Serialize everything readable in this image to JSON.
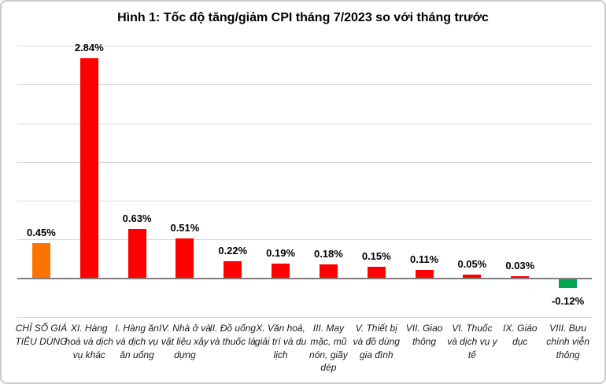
{
  "window": {
    "background": "#ffffff",
    "border_color": "#cacaca"
  },
  "chart_data": {
    "type": "bar",
    "title": "Hình 1: Tốc độ tăng/giảm CPI tháng 7/2023 so với tháng trước",
    "xlabel": "",
    "ylabel": "",
    "unit": "%",
    "categories": [
      "CHỈ SỐ GIÁ TIÊU DÙNG",
      "XI. Hàng hoá và dịch vụ khác",
      "I. Hàng ăn và dịch vụ ăn uống",
      "IV. Nhà ở và vật liệu xây dựng",
      "II. Đồ uống và thuốc lá",
      "X. Văn hoá, giải trí và du lịch",
      "III. May mặc, mũ nón, giầy dép",
      "V. Thiết bị và đồ dùng gia đình",
      "VII. Giao thông",
      "VI. Thuốc và dịch vụ y tế",
      "IX. Giáo dục",
      "VIII. Bưu chính viễn thông"
    ],
    "values": [
      0.45,
      2.84,
      0.63,
      0.51,
      0.22,
      0.19,
      0.18,
      0.15,
      0.11,
      0.05,
      0.03,
      -0.12
    ],
    "value_labels": [
      "0.45%",
      "2.84%",
      "0.63%",
      "0.51%",
      "0.22%",
      "0.19%",
      "0.18%",
      "0.15%",
      "0.11%",
      "0.05%",
      "0.03%",
      "-0.12%"
    ],
    "bar_colors": [
      "#fb7300",
      "#ff0000",
      "#ff0000",
      "#ff0000",
      "#ff0000",
      "#ff0000",
      "#ff0000",
      "#ff0000",
      "#ff0000",
      "#ff0000",
      "#ff0000",
      "#00a550"
    ],
    "ylim": [
      -0.5,
      3.0
    ],
    "gridline_step": 0.5,
    "grid": true,
    "legend": false,
    "colors": {
      "total_bar": "#fb7300",
      "positive_bar": "#ff0000",
      "negative_bar": "#00a550",
      "gridline": "#d9d9d9",
      "axis": "#7f7f7f",
      "value_label_text": "#000000",
      "category_label_text": "#1a1a1a"
    }
  }
}
